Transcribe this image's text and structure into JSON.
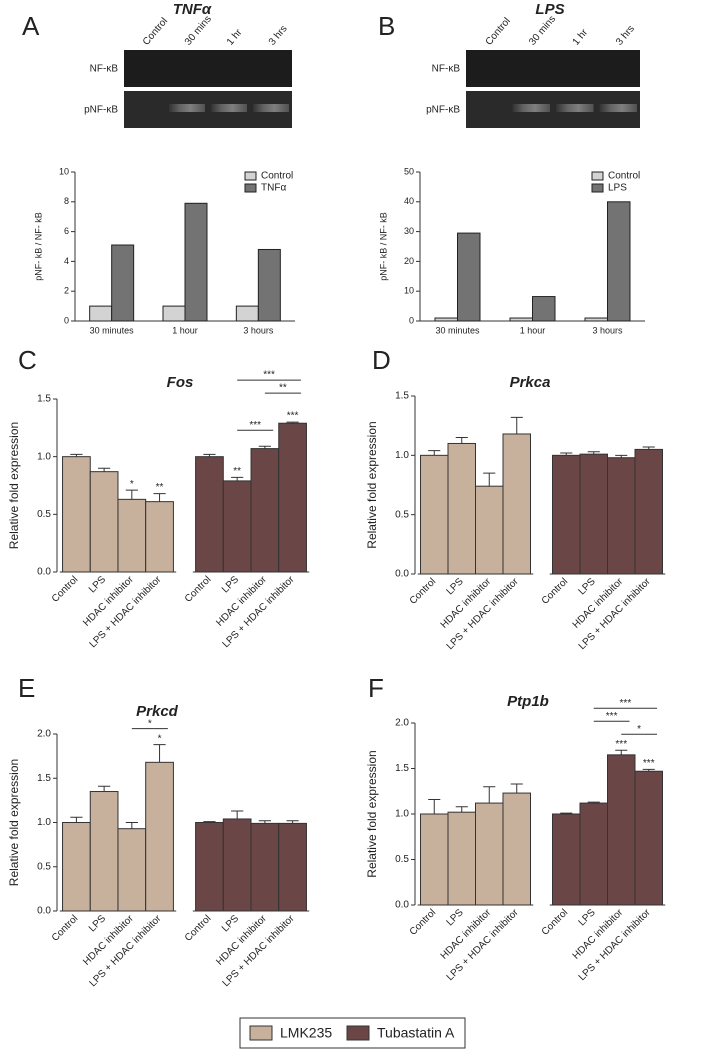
{
  "chart_data": [
    {
      "type": "bar",
      "label": "A",
      "title": "TNFα",
      "blot": {
        "rows": [
          "NF-κB",
          "pNF-κB"
        ],
        "lanes": [
          "Control",
          "30 mins",
          "1 hr",
          "3 hrs"
        ]
      },
      "y_label": "pNF- kB / NF- kB",
      "categories": [
        "30 minutes",
        "1 hour",
        "3 hours"
      ],
      "series": [
        {
          "name": "Control",
          "color": "#d3d3d3",
          "values": [
            1,
            1,
            1
          ]
        },
        {
          "name": "TNFα",
          "color": "#737373",
          "values": [
            5.1,
            7.9,
            4.8
          ]
        }
      ],
      "ylim": [
        0,
        10
      ],
      "yticks": [
        0,
        2,
        4,
        6,
        8,
        10
      ]
    },
    {
      "type": "bar",
      "label": "B",
      "title": "LPS",
      "blot": {
        "rows": [
          "NF-κB",
          "pNF-κB"
        ],
        "lanes": [
          "Control",
          "30 mins",
          "1 hr",
          "3 hrs"
        ]
      },
      "y_label": "pNF- kB / NF- kB",
      "categories": [
        "30 minutes",
        "1 hour",
        "3 hours"
      ],
      "series": [
        {
          "name": "Control",
          "color": "#d3d3d3",
          "values": [
            1,
            1,
            1
          ]
        },
        {
          "name": "LPS",
          "color": "#737373",
          "values": [
            29.5,
            8.2,
            40
          ]
        }
      ],
      "ylim": [
        0,
        50
      ],
      "yticks": [
        0,
        10,
        20,
        30,
        40,
        50
      ]
    },
    {
      "type": "bar",
      "label": "C",
      "title": "Fos",
      "y_label": "Relative fold expression",
      "categories": [
        "Control",
        "LPS",
        "HDAC inhibitor",
        "LPS + HDAC inhibitor"
      ],
      "series": [
        {
          "name": "LMK235",
          "color": "#c8b19c",
          "values": [
            1.0,
            0.87,
            0.63,
            0.61
          ],
          "errors": [
            0.02,
            0.03,
            0.08,
            0.07
          ],
          "stars": [
            null,
            null,
            "*",
            "**"
          ],
          "brackets": []
        },
        {
          "name": "Tubastatin A",
          "color": "#6b4646",
          "values": [
            1.0,
            0.79,
            1.07,
            1.29
          ],
          "errors": [
            0.02,
            0.03,
            0.02,
            0.01
          ],
          "stars": [
            null,
            "**",
            null,
            "***"
          ],
          "brackets": [
            {
              "from": 1,
              "to": 2,
              "text": "***"
            },
            {
              "from": 2,
              "to": 3,
              "text": "**"
            },
            {
              "from": 1,
              "to": 3,
              "text": "***"
            }
          ]
        }
      ],
      "ylim": [
        0,
        1.5
      ],
      "yticks": [
        {
          "value": 0,
          "label": "0.0"
        },
        {
          "value": 0.5,
          "label": "0.5"
        },
        {
          "value": 1,
          "label": "1.0"
        },
        {
          "value": 1.5,
          "label": "1.5"
        }
      ]
    },
    {
      "type": "bar",
      "label": "D",
      "title": "Prkca",
      "y_label": "Relative fold expression",
      "categories": [
        "Control",
        "LPS",
        "HDAC inhibitor",
        "LPS + HDAC inhibitor"
      ],
      "series": [
        {
          "name": "LMK235",
          "color": "#c8b19c",
          "values": [
            1.0,
            1.1,
            0.74,
            1.18
          ],
          "errors": [
            0.04,
            0.05,
            0.11,
            0.14
          ],
          "stars": [
            null,
            null,
            null,
            null
          ],
          "brackets": []
        },
        {
          "name": "Tubastatin A",
          "color": "#6b4646",
          "values": [
            1.0,
            1.01,
            0.98,
            1.05
          ],
          "errors": [
            0.02,
            0.02,
            0.02,
            0.02
          ],
          "stars": [
            null,
            null,
            null,
            null
          ],
          "brackets": []
        }
      ],
      "ylim": [
        0,
        1.5
      ],
      "yticks": [
        {
          "value": 0,
          "label": "0.0"
        },
        {
          "value": 0.5,
          "label": "0.5"
        },
        {
          "value": 1,
          "label": "1.0"
        },
        {
          "value": 1.5,
          "label": "1.5"
        }
      ]
    },
    {
      "type": "bar",
      "label": "E",
      "title": "Prkcd",
      "y_label": "Relative fold expression",
      "categories": [
        "Control",
        "LPS",
        "HDAC inhibitor",
        "LPS + HDAC inhibitor"
      ],
      "series": [
        {
          "name": "LMK235",
          "color": "#c8b19c",
          "values": [
            1.0,
            1.35,
            0.93,
            1.68
          ],
          "errors": [
            0.06,
            0.06,
            0.07,
            0.2
          ],
          "stars": [
            null,
            null,
            null,
            "*"
          ],
          "brackets": [
            {
              "from": 2,
              "to": 3,
              "text": "*"
            }
          ]
        },
        {
          "name": "Tubastatin A",
          "color": "#6b4646",
          "values": [
            1.0,
            1.04,
            0.99,
            0.99
          ],
          "errors": [
            0.01,
            0.09,
            0.03,
            0.03
          ],
          "stars": [
            null,
            null,
            null,
            null
          ],
          "brackets": []
        }
      ],
      "ylim": [
        0,
        2
      ],
      "yticks": [
        {
          "value": 0,
          "label": "0.0"
        },
        {
          "value": 0.5,
          "label": "0.5"
        },
        {
          "value": 1,
          "label": "1.0"
        },
        {
          "value": 1.5,
          "label": "1.5"
        },
        {
          "value": 2,
          "label": "2.0"
        }
      ]
    },
    {
      "type": "bar",
      "label": "F",
      "title": "Ptp1b",
      "y_label": "Relative fold expression",
      "categories": [
        "Control",
        "LPS",
        "HDAC inhibitor",
        "LPS + HDAC inhibitor"
      ],
      "series": [
        {
          "name": "LMK235",
          "color": "#c8b19c",
          "values": [
            1.0,
            1.02,
            1.12,
            1.23
          ],
          "errors": [
            0.16,
            0.06,
            0.18,
            0.1
          ],
          "stars": [
            null,
            null,
            null,
            null
          ],
          "brackets": []
        },
        {
          "name": "Tubastatin A",
          "color": "#6b4646",
          "values": [
            1.0,
            1.12,
            1.65,
            1.47
          ],
          "errors": [
            0.01,
            0.01,
            0.05,
            0.02
          ],
          "stars": [
            null,
            null,
            "***",
            "***"
          ],
          "brackets": [
            {
              "from": 2,
              "to": 3,
              "text": "*"
            },
            {
              "from": 1,
              "to": 2,
              "text": "***"
            },
            {
              "from": 1,
              "to": 3,
              "text": "***"
            }
          ]
        }
      ],
      "ylim": [
        0,
        2
      ],
      "yticks": [
        {
          "value": 0,
          "label": "0.0"
        },
        {
          "value": 0.5,
          "label": "0.5"
        },
        {
          "value": 1,
          "label": "1.0"
        },
        {
          "value": 1.5,
          "label": "1.5"
        },
        {
          "value": 2,
          "label": "2.0"
        }
      ]
    }
  ]
}
